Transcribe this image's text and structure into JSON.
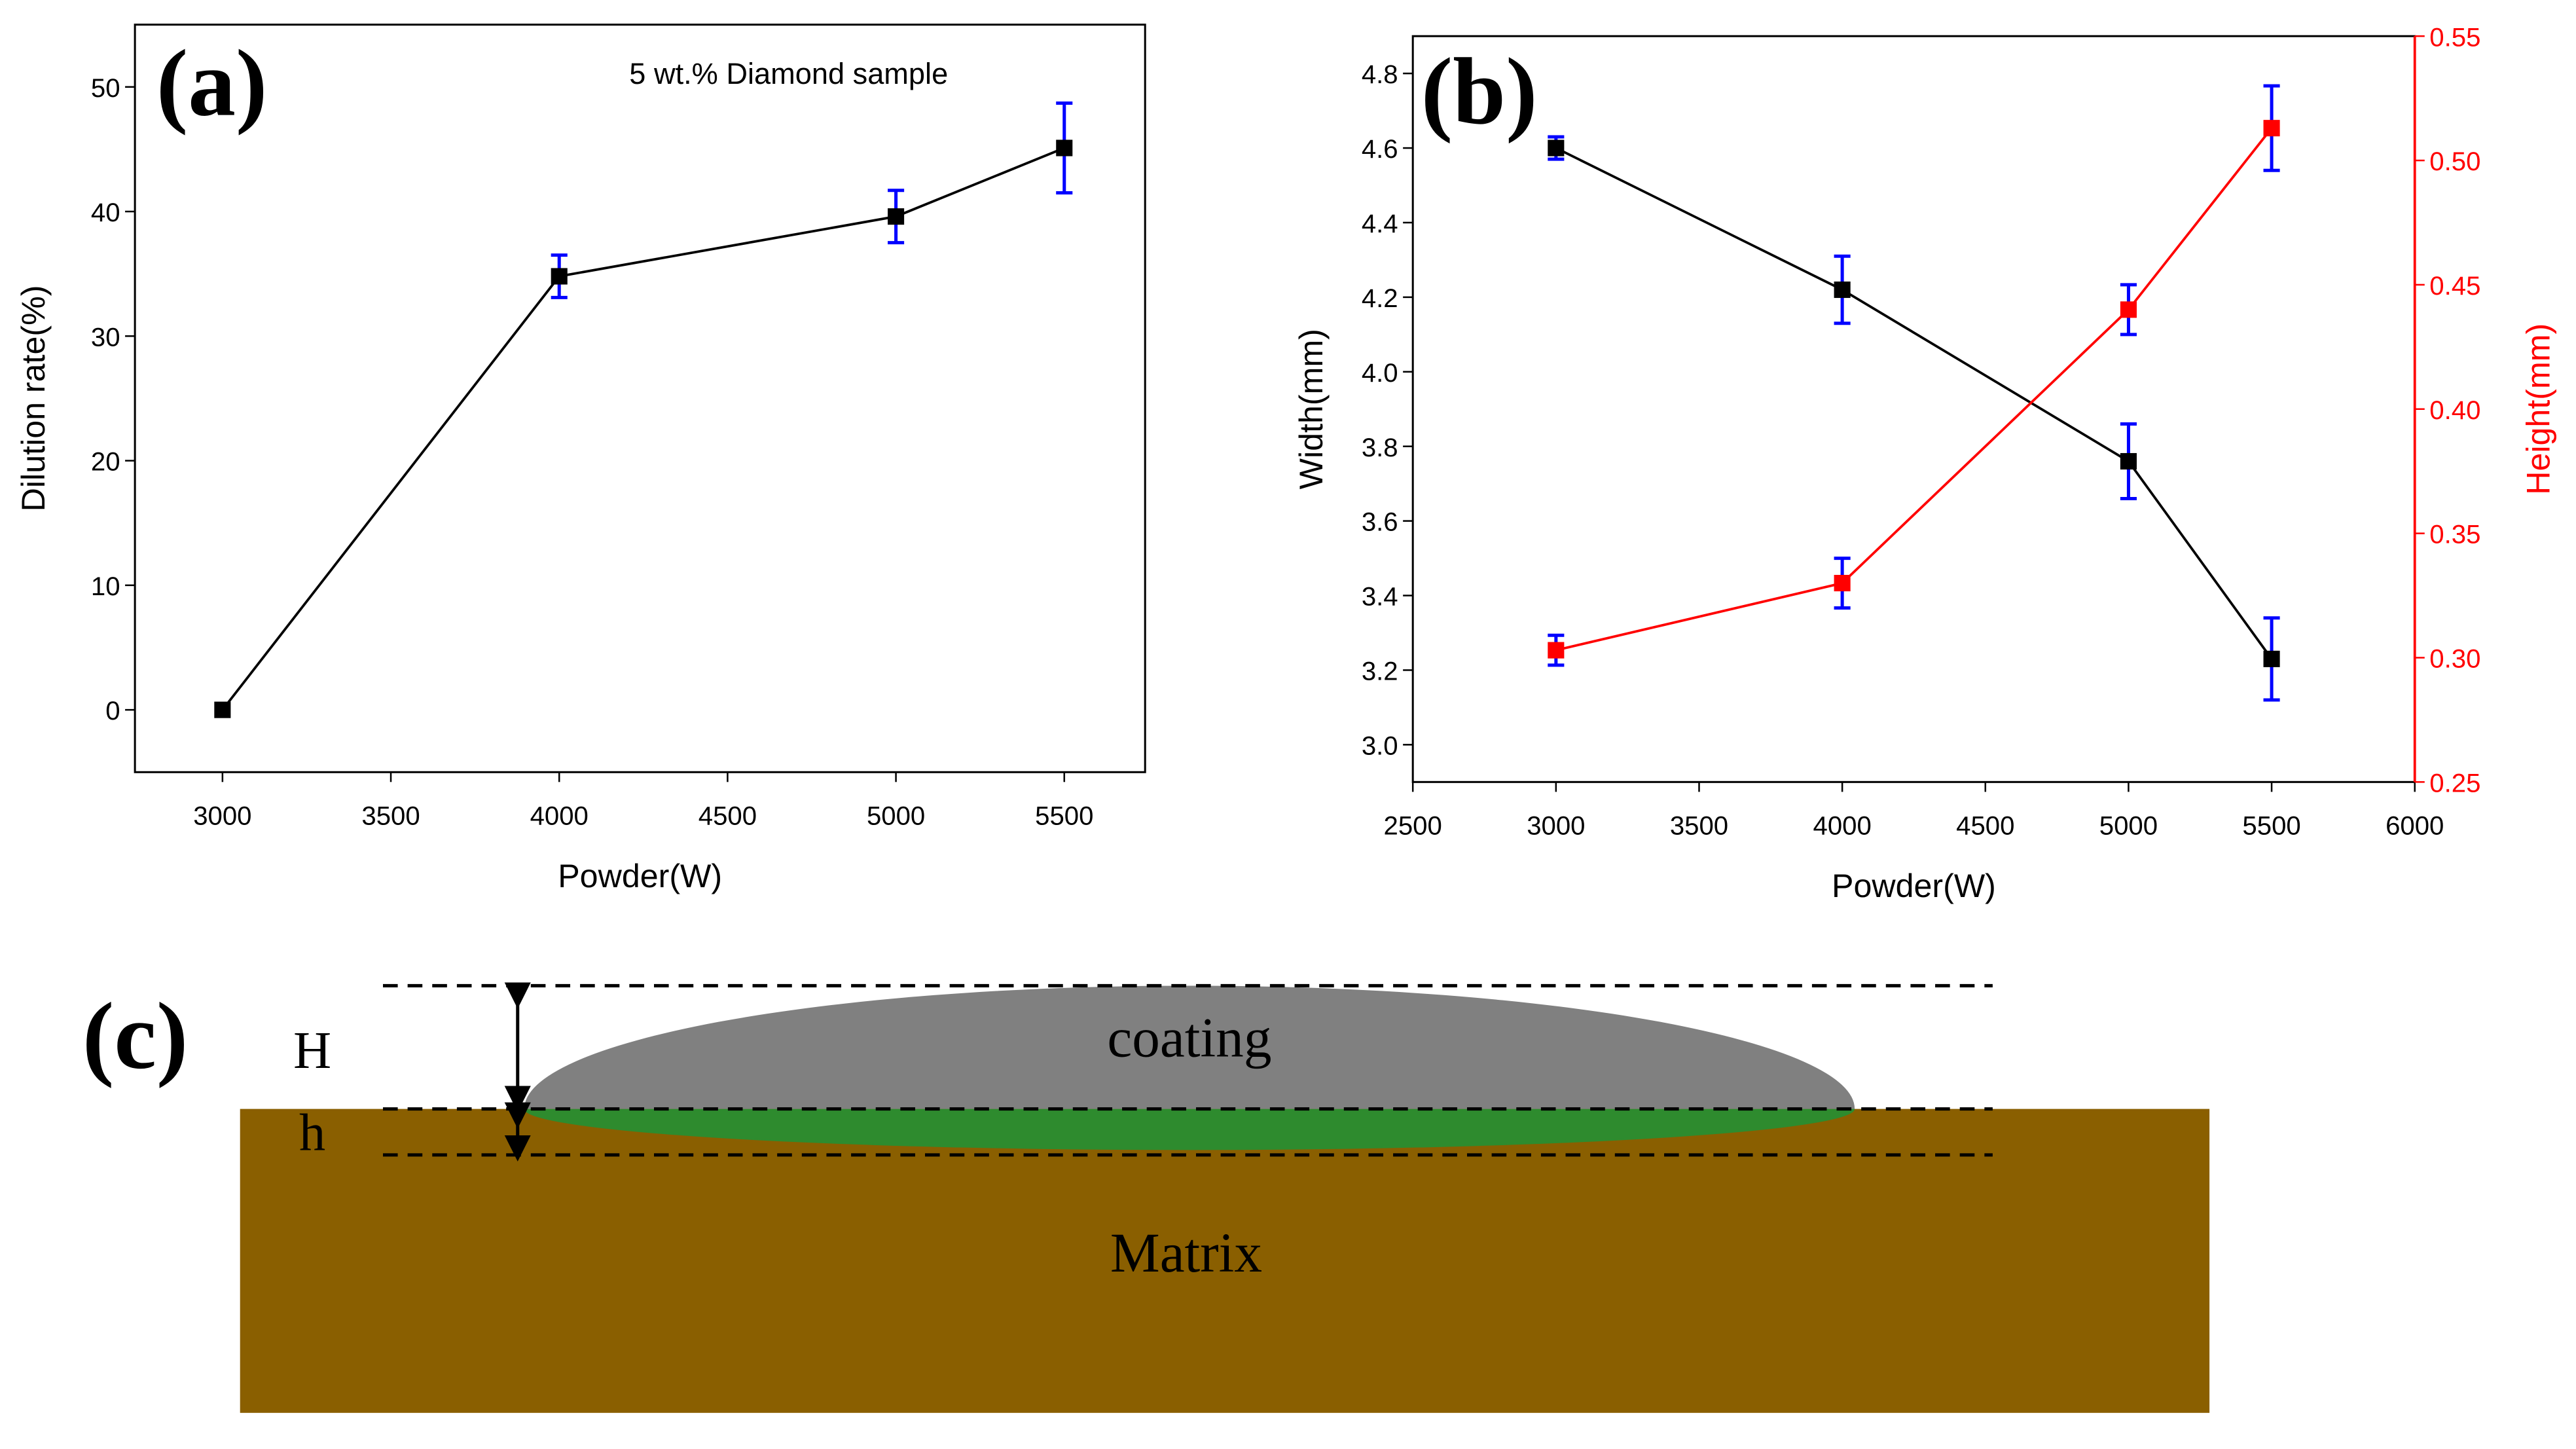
{
  "chart_data": [
    {
      "type": "line",
      "panel": "(a)",
      "annotation": "5 wt.% Diamond sample",
      "x_label": "Powder(W)",
      "y_label": "Dilution rate(%)",
      "x": [
        3000,
        4000,
        5000,
        5500
      ],
      "series": [
        {
          "color": "#000000",
          "error_color": "#0000ff",
          "values": [
            0,
            34.8,
            39.6,
            45.1
          ],
          "errors": [
            0,
            1.7,
            2.1,
            3.6
          ]
        }
      ],
      "xlim": [
        2740,
        5740
      ],
      "xticks": [
        3000,
        3500,
        4000,
        4500,
        5000,
        5500
      ],
      "ylim": [
        -5,
        55
      ],
      "yticks": [
        0,
        10,
        20,
        30,
        40,
        50
      ]
    },
    {
      "type": "line",
      "panel": "(b)",
      "x_label": "Powder(W)",
      "y_label": "Width(mm)",
      "y2_label": "Height(mm)",
      "x": [
        3000,
        4000,
        5000,
        5500
      ],
      "series": [
        {
          "color": "#000000",
          "error_color": "#0000ff",
          "values": [
            4.6,
            4.22,
            3.76,
            3.23
          ],
          "errors": [
            0.03,
            0.09,
            0.1,
            0.11
          ]
        },
        {
          "color": "#ff0000",
          "error_color": "#0000ff",
          "axis": "y2",
          "values": [
            0.303,
            0.33,
            0.44,
            0.513
          ],
          "errors": [
            0.006,
            0.01,
            0.01,
            0.017
          ]
        }
      ],
      "xlim": [
        2500,
        6000
      ],
      "xticks": [
        2500,
        3000,
        3500,
        4000,
        4500,
        5000,
        5500,
        6000
      ],
      "ylim": [
        2.9,
        4.9
      ],
      "yticks": [
        {
          "value": 3,
          "label": "3.0"
        },
        3.2,
        3.4,
        3.6,
        3.8,
        {
          "value": 4,
          "label": "4.0"
        },
        4.2,
        4.4,
        4.6,
        4.8
      ],
      "y2lim": [
        0.25,
        0.55
      ],
      "y2ticks": [
        0.25,
        {
          "value": 0.3,
          "label": "0.30"
        },
        0.35,
        {
          "value": 0.4,
          "label": "0.40"
        },
        0.45,
        {
          "value": 0.5,
          "label": "0.50"
        },
        0.55
      ]
    }
  ],
  "diagram": {
    "panel": "(c)",
    "H": "H",
    "h": "h",
    "coating": "coating",
    "matrix": "Matrix"
  }
}
